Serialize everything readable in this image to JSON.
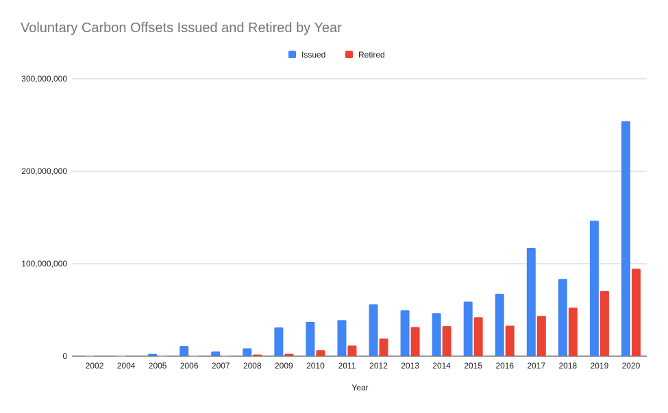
{
  "chart_data": {
    "type": "bar",
    "title": "Voluntary Carbon Offsets Issued and Retired by Year",
    "xlabel": "Year",
    "ylabel": "",
    "categories": [
      "2002",
      "2004",
      "2005",
      "2006",
      "2007",
      "2008",
      "2009",
      "2010",
      "2011",
      "2012",
      "2013",
      "2014",
      "2015",
      "2016",
      "2017",
      "2018",
      "2019",
      "2020"
    ],
    "series": [
      {
        "name": "Issued",
        "color": "#4285F4",
        "values": [
          300000,
          200000,
          2500000,
          11000000,
          5000000,
          8500000,
          31000000,
          37000000,
          39000000,
          56000000,
          49500000,
          46500000,
          59000000,
          67500000,
          117000000,
          83500000,
          146500000,
          254000000
        ]
      },
      {
        "name": "Retired",
        "color": "#EA4335",
        "values": [
          0,
          0,
          200000,
          300000,
          300000,
          1800000,
          2500000,
          6500000,
          11500000,
          19000000,
          31500000,
          32500000,
          42000000,
          33000000,
          43500000,
          52500000,
          70500000,
          94500000
        ]
      }
    ],
    "ylim": [
      0,
      300000000
    ],
    "yticks": [
      0,
      100000000,
      200000000,
      300000000
    ],
    "ytick_labels": [
      "0",
      "100,000,000",
      "200,000,000",
      "300,000,000"
    ],
    "grid": true,
    "legend_position": "top-center"
  }
}
